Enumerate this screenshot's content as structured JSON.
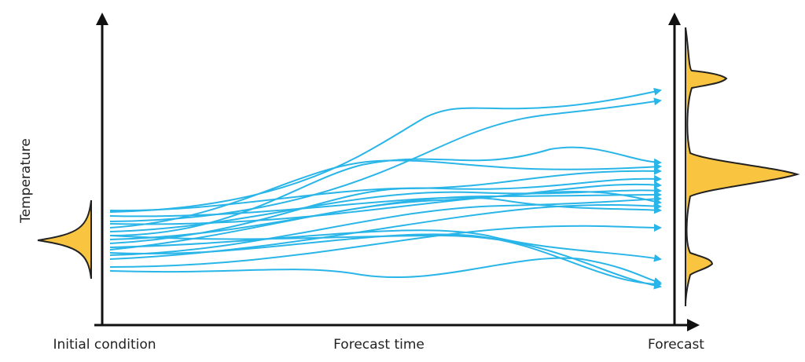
{
  "axis": {
    "y_label": "Temperature",
    "x_start_label": "Initial condition",
    "x_label": "Forecast time",
    "x_end_label": "Forecast"
  }
}
